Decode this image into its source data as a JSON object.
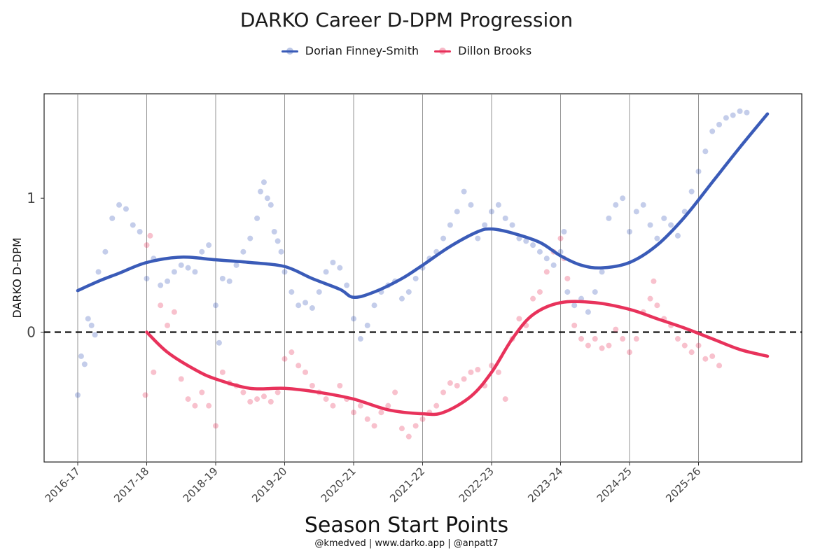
{
  "title": "DARKO Career D-DPM Progression",
  "caption": "@kmedved | www.darko.app | @anpatt7",
  "colors": {
    "player1": "#3a5bb8",
    "player2": "#e8325b"
  },
  "chart_data": {
    "type": "scatter",
    "title": "DARKO Career D-DPM Progression",
    "xlabel": "Season Start Points",
    "ylabel": "DARKO D-DPM",
    "ylim": [
      -0.97,
      1.78
    ],
    "yticks": [
      0,
      1
    ],
    "reference_line": {
      "y": 0,
      "style": "dashed"
    },
    "x_ticks": [
      "2016-17",
      "2017-18",
      "2018-19",
      "2019-20",
      "2020-21",
      "2021-22",
      "2022-23",
      "2023-24",
      "2024-25",
      "2025-26"
    ],
    "legend": "top-center",
    "grid": "vertical lines at season starts",
    "series": [
      {
        "name": "Dorian Finney-Smith",
        "color": "#3a5bb8",
        "trend": [
          [
            0.0,
            0.31
          ],
          [
            0.3,
            0.38
          ],
          [
            0.6,
            0.44
          ],
          [
            1.0,
            0.52
          ],
          [
            1.5,
            0.56
          ],
          [
            2.0,
            0.54
          ],
          [
            2.5,
            0.52
          ],
          [
            3.0,
            0.49
          ],
          [
            3.4,
            0.4
          ],
          [
            3.8,
            0.32
          ],
          [
            4.0,
            0.26
          ],
          [
            4.3,
            0.3
          ],
          [
            4.7,
            0.4
          ],
          [
            5.0,
            0.5
          ],
          [
            5.4,
            0.64
          ],
          [
            5.8,
            0.75
          ],
          [
            6.0,
            0.77
          ],
          [
            6.3,
            0.74
          ],
          [
            6.7,
            0.67
          ],
          [
            7.0,
            0.57
          ],
          [
            7.3,
            0.5
          ],
          [
            7.6,
            0.48
          ],
          [
            8.0,
            0.52
          ],
          [
            8.4,
            0.65
          ],
          [
            8.8,
            0.86
          ],
          [
            9.2,
            1.12
          ],
          [
            9.6,
            1.38
          ],
          [
            10.0,
            1.63
          ]
        ],
        "points": [
          [
            0.0,
            -0.47
          ],
          [
            0.05,
            -0.18
          ],
          [
            0.1,
            -0.24
          ],
          [
            0.15,
            0.1
          ],
          [
            0.2,
            0.05
          ],
          [
            0.25,
            -0.02
          ],
          [
            0.3,
            0.45
          ],
          [
            0.4,
            0.6
          ],
          [
            0.5,
            0.85
          ],
          [
            0.6,
            0.95
          ],
          [
            0.7,
            0.92
          ],
          [
            0.8,
            0.8
          ],
          [
            0.9,
            0.75
          ],
          [
            1.0,
            0.4
          ],
          [
            1.1,
            0.55
          ],
          [
            1.2,
            0.35
          ],
          [
            1.3,
            0.38
          ],
          [
            1.4,
            0.45
          ],
          [
            1.5,
            0.5
          ],
          [
            1.6,
            0.48
          ],
          [
            1.7,
            0.45
          ],
          [
            1.8,
            0.6
          ],
          [
            1.9,
            0.65
          ],
          [
            2.0,
            0.2
          ],
          [
            2.05,
            -0.08
          ],
          [
            2.1,
            0.4
          ],
          [
            2.2,
            0.38
          ],
          [
            2.3,
            0.5
          ],
          [
            2.4,
            0.6
          ],
          [
            2.5,
            0.7
          ],
          [
            2.6,
            0.85
          ],
          [
            2.65,
            1.05
          ],
          [
            2.7,
            1.12
          ],
          [
            2.75,
            1.0
          ],
          [
            2.8,
            0.95
          ],
          [
            2.85,
            0.75
          ],
          [
            2.9,
            0.68
          ],
          [
            2.95,
            0.6
          ],
          [
            3.0,
            0.45
          ],
          [
            3.1,
            0.3
          ],
          [
            3.2,
            0.2
          ],
          [
            3.3,
            0.22
          ],
          [
            3.4,
            0.18
          ],
          [
            3.5,
            0.3
          ],
          [
            3.6,
            0.45
          ],
          [
            3.7,
            0.52
          ],
          [
            3.8,
            0.48
          ],
          [
            3.9,
            0.35
          ],
          [
            4.0,
            0.1
          ],
          [
            4.1,
            -0.05
          ],
          [
            4.2,
            0.05
          ],
          [
            4.3,
            0.2
          ],
          [
            4.4,
            0.3
          ],
          [
            4.5,
            0.35
          ],
          [
            4.6,
            0.38
          ],
          [
            4.7,
            0.25
          ],
          [
            4.8,
            0.3
          ],
          [
            4.9,
            0.4
          ],
          [
            5.0,
            0.48
          ],
          [
            5.1,
            0.55
          ],
          [
            5.2,
            0.6
          ],
          [
            5.3,
            0.7
          ],
          [
            5.4,
            0.8
          ],
          [
            5.5,
            0.9
          ],
          [
            5.6,
            1.05
          ],
          [
            5.7,
            0.95
          ],
          [
            5.8,
            0.7
          ],
          [
            5.9,
            0.8
          ],
          [
            6.0,
            0.9
          ],
          [
            6.1,
            0.95
          ],
          [
            6.2,
            0.85
          ],
          [
            6.3,
            0.8
          ],
          [
            6.4,
            0.7
          ],
          [
            6.5,
            0.68
          ],
          [
            6.6,
            0.65
          ],
          [
            6.7,
            0.6
          ],
          [
            6.8,
            0.55
          ],
          [
            6.9,
            0.5
          ],
          [
            7.0,
            0.6
          ],
          [
            7.05,
            0.75
          ],
          [
            7.1,
            0.3
          ],
          [
            7.2,
            0.2
          ],
          [
            7.3,
            0.25
          ],
          [
            7.4,
            0.15
          ],
          [
            7.5,
            0.3
          ],
          [
            7.6,
            0.45
          ],
          [
            7.7,
            0.85
          ],
          [
            7.8,
            0.95
          ],
          [
            7.9,
            1.0
          ],
          [
            8.0,
            0.75
          ],
          [
            8.1,
            0.9
          ],
          [
            8.2,
            0.95
          ],
          [
            8.3,
            0.8
          ],
          [
            8.4,
            0.7
          ],
          [
            8.5,
            0.85
          ],
          [
            8.6,
            0.8
          ],
          [
            8.7,
            0.72
          ],
          [
            8.8,
            0.9
          ],
          [
            8.9,
            1.05
          ],
          [
            9.0,
            1.2
          ],
          [
            9.1,
            1.35
          ],
          [
            9.2,
            1.5
          ],
          [
            9.3,
            1.55
          ],
          [
            9.4,
            1.6
          ],
          [
            9.5,
            1.62
          ],
          [
            9.6,
            1.65
          ],
          [
            9.7,
            1.64
          ]
        ]
      },
      {
        "name": "Dillon Brooks",
        "color": "#e8325b",
        "trend": [
          [
            1.0,
            0.0
          ],
          [
            1.3,
            -0.15
          ],
          [
            1.7,
            -0.28
          ],
          [
            2.0,
            -0.35
          ],
          [
            2.5,
            -0.42
          ],
          [
            3.0,
            -0.42
          ],
          [
            3.5,
            -0.45
          ],
          [
            4.0,
            -0.5
          ],
          [
            4.5,
            -0.58
          ],
          [
            5.0,
            -0.61
          ],
          [
            5.3,
            -0.6
          ],
          [
            5.7,
            -0.48
          ],
          [
            6.0,
            -0.3
          ],
          [
            6.3,
            -0.05
          ],
          [
            6.6,
            0.13
          ],
          [
            7.0,
            0.22
          ],
          [
            7.5,
            0.22
          ],
          [
            8.0,
            0.17
          ],
          [
            8.4,
            0.1
          ],
          [
            8.8,
            0.03
          ],
          [
            9.2,
            -0.05
          ],
          [
            9.6,
            -0.13
          ],
          [
            10.0,
            -0.18
          ]
        ],
        "points": [
          [
            0.98,
            -0.47
          ],
          [
            1.0,
            0.65
          ],
          [
            1.05,
            0.72
          ],
          [
            1.1,
            -0.3
          ],
          [
            1.2,
            0.2
          ],
          [
            1.3,
            0.05
          ],
          [
            1.4,
            0.15
          ],
          [
            1.5,
            -0.35
          ],
          [
            1.6,
            -0.5
          ],
          [
            1.7,
            -0.55
          ],
          [
            1.8,
            -0.45
          ],
          [
            1.9,
            -0.55
          ],
          [
            2.0,
            -0.7
          ],
          [
            2.1,
            -0.3
          ],
          [
            2.2,
            -0.38
          ],
          [
            2.3,
            -0.4
          ],
          [
            2.4,
            -0.45
          ],
          [
            2.5,
            -0.52
          ],
          [
            2.6,
            -0.5
          ],
          [
            2.7,
            -0.48
          ],
          [
            2.8,
            -0.52
          ],
          [
            2.9,
            -0.45
          ],
          [
            3.0,
            -0.2
          ],
          [
            3.1,
            -0.15
          ],
          [
            3.2,
            -0.25
          ],
          [
            3.3,
            -0.3
          ],
          [
            3.4,
            -0.4
          ],
          [
            3.5,
            -0.45
          ],
          [
            3.6,
            -0.5
          ],
          [
            3.7,
            -0.55
          ],
          [
            3.8,
            -0.4
          ],
          [
            3.9,
            -0.5
          ],
          [
            4.0,
            -0.6
          ],
          [
            4.1,
            -0.55
          ],
          [
            4.2,
            -0.65
          ],
          [
            4.3,
            -0.7
          ],
          [
            4.4,
            -0.6
          ],
          [
            4.5,
            -0.55
          ],
          [
            4.6,
            -0.45
          ],
          [
            4.7,
            -0.72
          ],
          [
            4.8,
            -0.78
          ],
          [
            4.9,
            -0.7
          ],
          [
            5.0,
            -0.65
          ],
          [
            5.1,
            -0.6
          ],
          [
            5.2,
            -0.55
          ],
          [
            5.3,
            -0.45
          ],
          [
            5.4,
            -0.38
          ],
          [
            5.5,
            -0.4
          ],
          [
            5.6,
            -0.35
          ],
          [
            5.7,
            -0.3
          ],
          [
            5.8,
            -0.28
          ],
          [
            5.9,
            -0.4
          ],
          [
            6.0,
            -0.25
          ],
          [
            6.1,
            -0.3
          ],
          [
            6.2,
            -0.5
          ],
          [
            6.3,
            -0.05
          ],
          [
            6.4,
            0.1
          ],
          [
            6.5,
            0.05
          ],
          [
            6.6,
            0.25
          ],
          [
            6.7,
            0.3
          ],
          [
            6.8,
            0.45
          ],
          [
            6.9,
            0.6
          ],
          [
            7.0,
            0.7
          ],
          [
            7.05,
            0.55
          ],
          [
            7.1,
            0.4
          ],
          [
            7.2,
            0.05
          ],
          [
            7.3,
            -0.05
          ],
          [
            7.4,
            -0.1
          ],
          [
            7.5,
            -0.05
          ],
          [
            7.6,
            -0.12
          ],
          [
            7.7,
            -0.1
          ],
          [
            7.8,
            0.02
          ],
          [
            7.9,
            -0.05
          ],
          [
            8.0,
            -0.15
          ],
          [
            8.1,
            -0.05
          ],
          [
            8.2,
            0.15
          ],
          [
            8.3,
            0.25
          ],
          [
            8.35,
            0.38
          ],
          [
            8.4,
            0.2
          ],
          [
            8.5,
            0.1
          ],
          [
            8.6,
            0.05
          ],
          [
            8.7,
            -0.05
          ],
          [
            8.8,
            -0.1
          ],
          [
            8.9,
            -0.15
          ],
          [
            9.0,
            -0.1
          ],
          [
            9.1,
            -0.2
          ],
          [
            9.2,
            -0.18
          ],
          [
            9.3,
            -0.25
          ]
        ]
      }
    ]
  }
}
